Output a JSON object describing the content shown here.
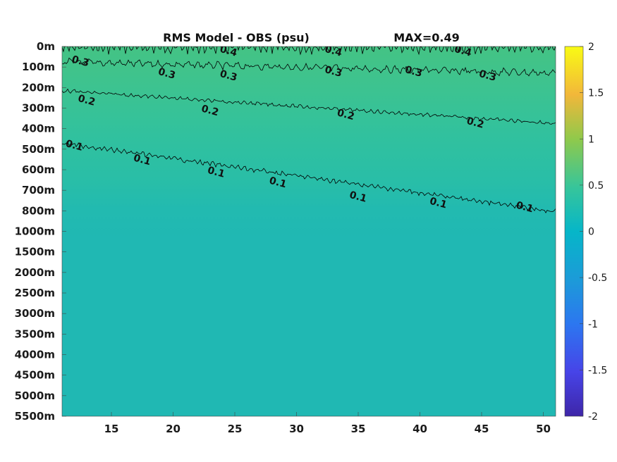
{
  "chart_data": {
    "type": "heatmap",
    "title": "RMS Model - OBS (psu)",
    "max_label": "MAX=0.49",
    "x_ticks": [
      "15",
      "20",
      "25",
      "30",
      "35",
      "40",
      "45",
      "50"
    ],
    "x_tick_values": [
      15,
      20,
      25,
      30,
      35,
      40,
      45,
      50
    ],
    "xlim": [
      11,
      51
    ],
    "y_ticks": [
      "0m",
      "100m",
      "200m",
      "300m",
      "400m",
      "500m",
      "600m",
      "700m",
      "800m",
      "1000m",
      "1500m",
      "2000m",
      "2500m",
      "3000m",
      "3500m",
      "4000m",
      "4500m",
      "5000m",
      "5500m"
    ],
    "colorbar": {
      "ticks": [
        "2",
        "1.5",
        "1",
        "0.5",
        "0",
        "-0.5",
        "-1",
        "-1.5",
        "-2"
      ],
      "range": [
        -2,
        2
      ],
      "colormap": "parula"
    },
    "contour_labels": [
      {
        "text": "0.4",
        "x": 24.5,
        "depth": "20m"
      },
      {
        "text": "0.4",
        "x": 33.0,
        "depth": "20m"
      },
      {
        "text": "0.4",
        "x": 43.5,
        "depth": "20m"
      },
      {
        "text": "0.3",
        "x": 12.5,
        "depth": "70m"
      },
      {
        "text": "0.3",
        "x": 19.5,
        "depth": "130m"
      },
      {
        "text": "0.3",
        "x": 24.5,
        "depth": "140m"
      },
      {
        "text": "0.3",
        "x": 33.0,
        "depth": "120m"
      },
      {
        "text": "0.3",
        "x": 39.5,
        "depth": "120m"
      },
      {
        "text": "0.3",
        "x": 45.5,
        "depth": "140m"
      },
      {
        "text": "0.2",
        "x": 13.0,
        "depth": "260m"
      },
      {
        "text": "0.2",
        "x": 23.0,
        "depth": "310m"
      },
      {
        "text": "0.2",
        "x": 34.0,
        "depth": "330m"
      },
      {
        "text": "0.2",
        "x": 44.5,
        "depth": "370m"
      },
      {
        "text": "0.1",
        "x": 12.0,
        "depth": "480m"
      },
      {
        "text": "0.1",
        "x": 17.5,
        "depth": "550m"
      },
      {
        "text": "0.1",
        "x": 23.5,
        "depth": "610m"
      },
      {
        "text": "0.1",
        "x": 28.5,
        "depth": "660m"
      },
      {
        "text": "0.1",
        "x": 35.0,
        "depth": "730m"
      },
      {
        "text": "0.1",
        "x": 41.5,
        "depth": "760m"
      },
      {
        "text": "0.1",
        "x": 48.5,
        "depth": "780m"
      }
    ],
    "background_colors": {
      "surface": "#40c38a",
      "mid": "#2fc0a0",
      "deep": "#20b7b4"
    }
  }
}
